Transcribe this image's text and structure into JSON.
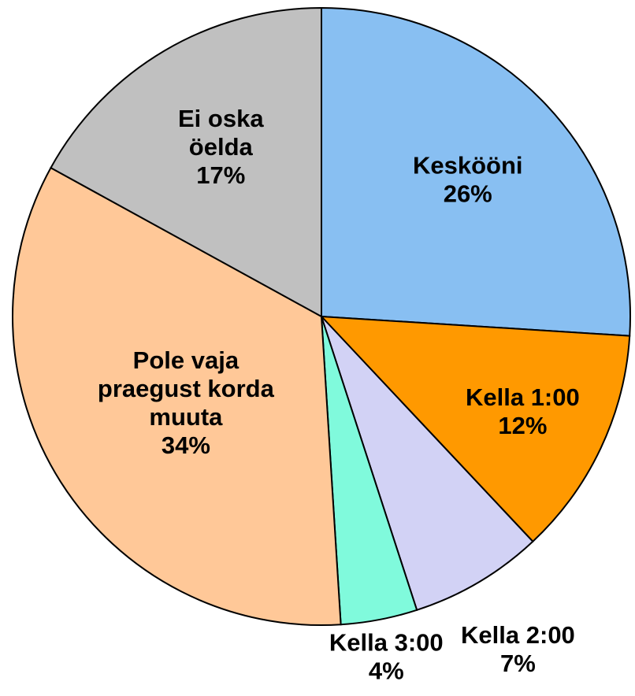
{
  "chart_data": {
    "type": "pie",
    "categories": [
      "Keskööni",
      "Kella 1:00",
      "Kella 2:00",
      "Kella 3:00",
      "Pole vaja\npraegust korda\nmuuta",
      "Ei oska\nöelda"
    ],
    "values": [
      26,
      12,
      7,
      4,
      34,
      17
    ],
    "value_labels": [
      "26%",
      "12%",
      "7%",
      "4%",
      "34%",
      "17%"
    ],
    "colors": [
      "#88bff2",
      "#ff9900",
      "#d2d2f5",
      "#80fadc",
      "#ffc898",
      "#c0c0c0"
    ]
  }
}
